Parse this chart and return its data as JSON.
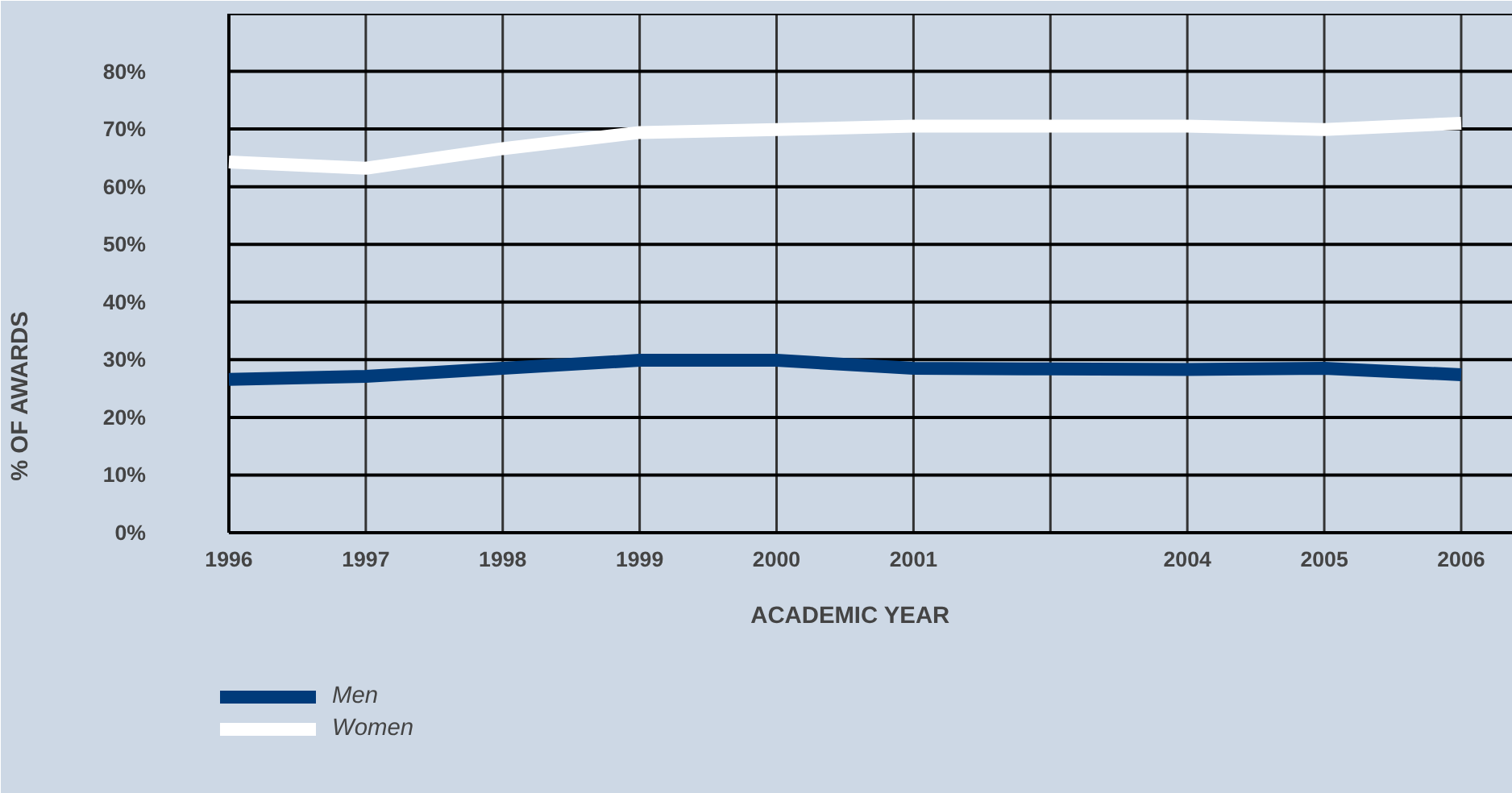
{
  "chart_data": {
    "type": "line",
    "xlabel": "ACADEMIC YEAR",
    "ylabel": "% OF AWARDS",
    "categories": [
      "1996",
      "1997",
      "1998",
      "1999",
      "2000",
      "2001",
      null,
      "2004",
      "2005",
      "2006"
    ],
    "series": [
      {
        "name": "Men",
        "color": "#003b7a",
        "values": [
          26.6,
          27.1,
          28.5,
          29.9,
          29.9,
          28.5,
          28.4,
          28.3,
          28.5,
          27.4
        ]
      },
      {
        "name": "Women",
        "color": "#ffffff",
        "values": [
          64.3,
          63.2,
          66.6,
          69.4,
          69.9,
          70.5,
          70.5,
          70.5,
          69.9,
          71.0
        ]
      }
    ],
    "ylim": [
      0,
      90
    ],
    "yticks": [
      {
        "value": 0,
        "label": "0%"
      },
      {
        "value": 10,
        "label": "10%"
      },
      {
        "value": 20,
        "label": "20%"
      },
      {
        "value": 30,
        "label": "30%"
      },
      {
        "value": 40,
        "label": "40%"
      },
      {
        "value": 50,
        "label": "50%"
      },
      {
        "value": 60,
        "label": "60%"
      },
      {
        "value": 70,
        "label": "70%"
      },
      {
        "value": 80,
        "label": "80%"
      }
    ],
    "grid": true,
    "legend": "bottom",
    "marker": "none",
    "line_style": "solid"
  }
}
